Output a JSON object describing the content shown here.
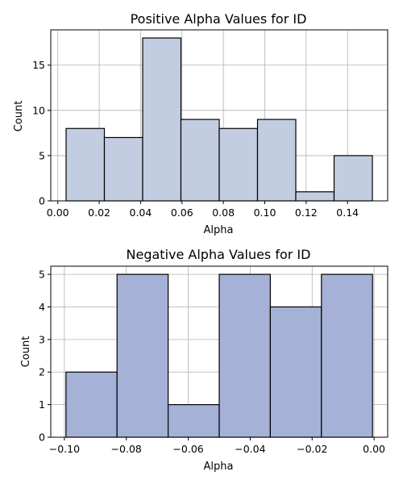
{
  "chart_data": [
    {
      "type": "bar",
      "title": "Positive Alpha Values for ID",
      "xlabel": "Alpha",
      "ylabel": "Count",
      "bin_edges": [
        0.004,
        0.0225,
        0.041,
        0.0595,
        0.078,
        0.0965,
        0.115,
        0.1335,
        0.152
      ],
      "values": [
        8,
        7,
        18,
        9,
        8,
        9,
        1,
        5
      ],
      "xlim": [
        -0.0034,
        0.1594
      ],
      "ylim": [
        0,
        18.9
      ],
      "xticks": [
        "0.00",
        "0.02",
        "0.04",
        "0.06",
        "0.08",
        "0.10",
        "0.12",
        "0.14"
      ],
      "xtick_values": [
        0.0,
        0.02,
        0.04,
        0.06,
        0.08,
        0.1,
        0.12,
        0.14
      ],
      "yticks": [
        "0",
        "5",
        "10",
        "15"
      ],
      "ytick_values": [
        0,
        5,
        10,
        15
      ],
      "grid": true,
      "bar_color": "#c3cde2",
      "edge_color": "#000000"
    },
    {
      "type": "bar",
      "title": "Negative Alpha Values for ID",
      "xlabel": "Alpha",
      "ylabel": "Count",
      "bin_edges": [
        -0.0995,
        -0.083,
        -0.0665,
        -0.05,
        -0.0335,
        -0.017,
        -0.0005
      ],
      "values": [
        2,
        5,
        1,
        5,
        4,
        5
      ],
      "xlim": [
        -0.1044,
        0.0044
      ],
      "ylim": [
        0,
        5.25
      ],
      "xticks": [
        "−0.10",
        "−0.08",
        "−0.06",
        "−0.04",
        "−0.02",
        "0.00"
      ],
      "xtick_values": [
        -0.1,
        -0.08,
        -0.06,
        -0.04,
        -0.02,
        0.0
      ],
      "yticks": [
        "0",
        "1",
        "2",
        "3",
        "4",
        "5"
      ],
      "ytick_values": [
        0,
        1,
        2,
        3,
        4,
        5
      ],
      "grid": true,
      "bar_color": "#a5b1d7",
      "edge_color": "#000000"
    }
  ]
}
